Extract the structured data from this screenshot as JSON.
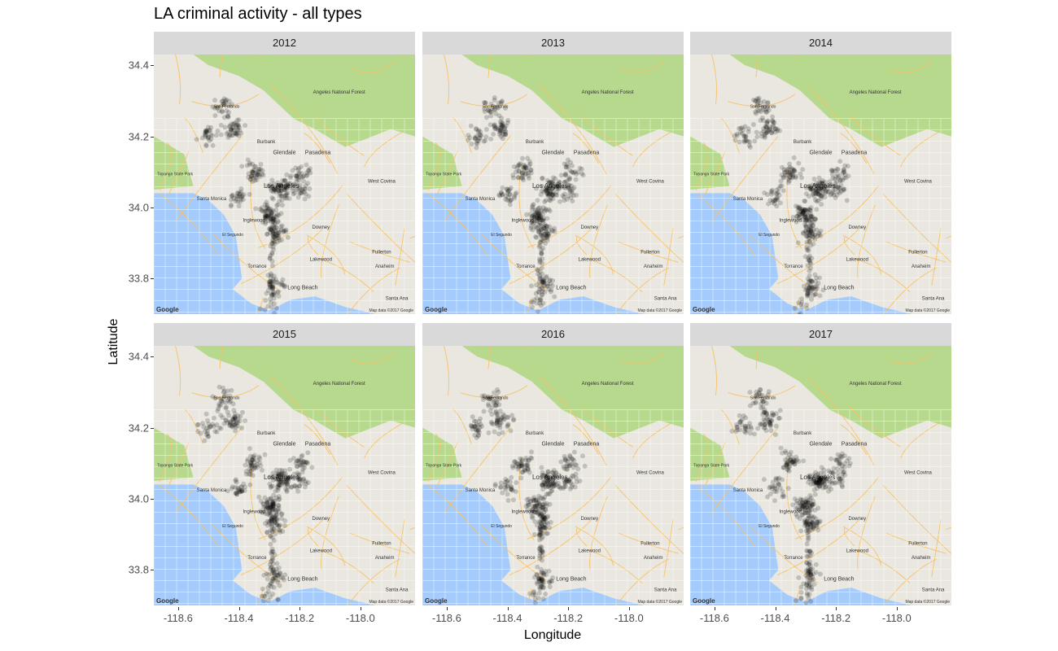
{
  "title": "LA criminal activity - all types",
  "axes": {
    "xlabel": "Longitude",
    "ylabel": "Latitude",
    "x_ticks": [
      "-118.6",
      "-118.4",
      "-118.2",
      "-118.0"
    ],
    "y_ticks": [
      "34.4",
      "34.2",
      "34.0",
      "33.8"
    ]
  },
  "facets": [
    "2012",
    "2013",
    "2014",
    "2015",
    "2016",
    "2017"
  ],
  "map_labels": {
    "google": "Google",
    "copyright": "Map data ©2017 Google",
    "places": [
      "Los Angeles",
      "Burbank",
      "Glendale",
      "Pasadena",
      "Santa Monica",
      "Inglewood",
      "Downey",
      "Torrance",
      "Long Beach",
      "Lakewood",
      "Anaheim",
      "Fullerton",
      "West Covina",
      "San Fernando",
      "Topanga State Park",
      "Angeles National Forest",
      "El Segundo",
      "Santa Ana"
    ]
  },
  "map_data": {
    "type": "faceted-point-map",
    "x_range": [
      -118.68,
      -117.82
    ],
    "y_range": [
      33.7,
      34.43
    ],
    "point_color": "#000000",
    "land_color": "#eae7e0",
    "water_color": "#a4cbfc",
    "forest_color": "#b7d98d",
    "road_color": "#f7c266",
    "hotspots": [
      {
        "lon": -118.26,
        "lat": 34.05,
        "weight": 5
      },
      {
        "lon": -118.3,
        "lat": 33.98,
        "weight": 5
      },
      {
        "lon": -118.28,
        "lat": 33.93,
        "weight": 3
      },
      {
        "lon": -118.42,
        "lat": 34.22,
        "weight": 3
      },
      {
        "lon": -118.45,
        "lat": 34.28,
        "weight": 2
      },
      {
        "lon": -118.35,
        "lat": 34.1,
        "weight": 3
      },
      {
        "lon": -118.19,
        "lat": 34.1,
        "weight": 2
      },
      {
        "lon": -118.28,
        "lat": 33.78,
        "weight": 2
      },
      {
        "lon": -118.3,
        "lat": 33.73,
        "weight": 1
      },
      {
        "lon": -118.4,
        "lat": 34.03,
        "weight": 2
      },
      {
        "lon": -118.5,
        "lat": 34.2,
        "weight": 2
      },
      {
        "lon": -118.2,
        "lat": 34.05,
        "weight": 2
      }
    ]
  }
}
